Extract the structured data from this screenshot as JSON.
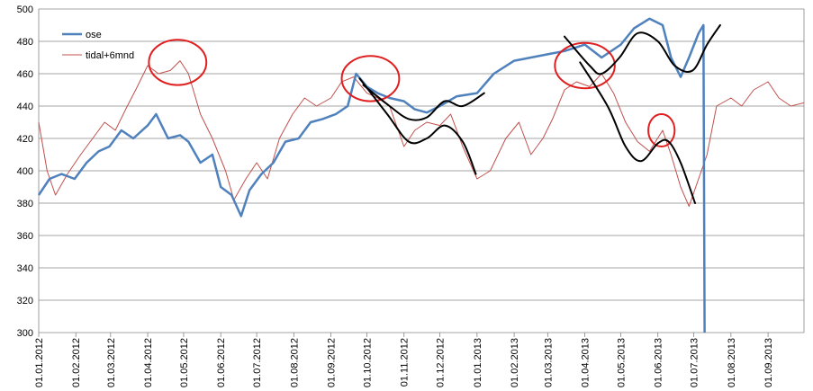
{
  "chart_data": {
    "type": "line",
    "title": "",
    "xlabel": "",
    "ylabel": "",
    "ylim": [
      300,
      500
    ],
    "xlim": [
      "2012-01-01",
      "2013-10-01"
    ],
    "yticks": [
      300,
      320,
      340,
      360,
      380,
      400,
      420,
      440,
      460,
      480,
      500
    ],
    "xticks": [
      "01.01.2012",
      "01.02.2012",
      "01.03.2012",
      "01.04.2012",
      "01.05.2012",
      "01.06.2012",
      "01.07.2012",
      "01.08.2012",
      "01.09.2012",
      "01.10.2012",
      "01.11.2012",
      "01.12.2012",
      "01.01.2013",
      "01.02.2013",
      "01.03.2013",
      "01.04.2013",
      "01.05.2013",
      "01.06.2013",
      "01.07.2013",
      "01.08.2013",
      "01.09.2013"
    ],
    "grid": "horizontal",
    "legend": "top-left",
    "series": [
      {
        "name": "ose",
        "color": "#4f81bd",
        "points": [
          [
            "2012-01-01",
            385
          ],
          [
            "2012-01-10",
            395
          ],
          [
            "2012-01-20",
            398
          ],
          [
            "2012-01-31",
            395
          ],
          [
            "2012-02-10",
            405
          ],
          [
            "2012-02-20",
            412
          ],
          [
            "2012-02-29",
            415
          ],
          [
            "2012-03-10",
            425
          ],
          [
            "2012-03-20",
            420
          ],
          [
            "2012-04-01",
            428
          ],
          [
            "2012-04-08",
            435
          ],
          [
            "2012-04-18",
            420
          ],
          [
            "2012-04-28",
            422
          ],
          [
            "2012-05-05",
            418
          ],
          [
            "2012-05-15",
            405
          ],
          [
            "2012-05-25",
            410
          ],
          [
            "2012-06-01",
            390
          ],
          [
            "2012-06-10",
            385
          ],
          [
            "2012-06-18",
            372
          ],
          [
            "2012-06-25",
            388
          ],
          [
            "2012-07-05",
            398
          ],
          [
            "2012-07-15",
            405
          ],
          [
            "2012-07-25",
            418
          ],
          [
            "2012-08-05",
            420
          ],
          [
            "2012-08-15",
            430
          ],
          [
            "2012-08-25",
            432
          ],
          [
            "2012-09-05",
            435
          ],
          [
            "2012-09-15",
            440
          ],
          [
            "2012-09-22",
            460
          ],
          [
            "2012-10-01",
            452
          ],
          [
            "2012-10-10",
            448
          ],
          [
            "2012-10-20",
            445
          ],
          [
            "2012-11-01",
            443
          ],
          [
            "2012-11-10",
            438
          ],
          [
            "2012-11-20",
            436
          ],
          [
            "2012-12-01",
            440
          ],
          [
            "2012-12-15",
            446
          ],
          [
            "2013-01-01",
            448
          ],
          [
            "2013-01-15",
            460
          ],
          [
            "2013-02-01",
            468
          ],
          [
            "2013-02-15",
            470
          ],
          [
            "2013-03-01",
            472
          ],
          [
            "2013-03-15",
            474
          ],
          [
            "2013-04-01",
            478
          ],
          [
            "2013-04-15",
            470
          ],
          [
            "2013-05-01",
            478
          ],
          [
            "2013-05-12",
            488
          ],
          [
            "2013-05-25",
            494
          ],
          [
            "2013-06-05",
            490
          ],
          [
            "2013-06-12",
            470
          ],
          [
            "2013-06-20",
            458
          ],
          [
            "2013-06-27",
            470
          ],
          [
            "2013-07-05",
            485
          ],
          [
            "2013-07-09",
            490
          ],
          [
            "2013-07-10",
            300
          ]
        ]
      },
      {
        "name": "tidal+6mnd",
        "color": "#c0504d",
        "points": [
          [
            "2012-01-01",
            430
          ],
          [
            "2012-01-08",
            400
          ],
          [
            "2012-01-15",
            385
          ],
          [
            "2012-01-25",
            398
          ],
          [
            "2012-02-05",
            410
          ],
          [
            "2012-02-15",
            420
          ],
          [
            "2012-02-25",
            430
          ],
          [
            "2012-03-05",
            425
          ],
          [
            "2012-03-15",
            440
          ],
          [
            "2012-03-22",
            450
          ],
          [
            "2012-04-01",
            465
          ],
          [
            "2012-04-10",
            460
          ],
          [
            "2012-04-20",
            462
          ],
          [
            "2012-04-28",
            468
          ],
          [
            "2012-05-05",
            460
          ],
          [
            "2012-05-15",
            435
          ],
          [
            "2012-05-25",
            420
          ],
          [
            "2012-06-05",
            400
          ],
          [
            "2012-06-12",
            382
          ],
          [
            "2012-06-22",
            395
          ],
          [
            "2012-07-01",
            405
          ],
          [
            "2012-07-10",
            395
          ],
          [
            "2012-07-20",
            420
          ],
          [
            "2012-07-31",
            435
          ],
          [
            "2012-08-10",
            445
          ],
          [
            "2012-08-20",
            440
          ],
          [
            "2012-09-01",
            445
          ],
          [
            "2012-09-10",
            455
          ],
          [
            "2012-09-20",
            458
          ],
          [
            "2012-10-01",
            448
          ],
          [
            "2012-10-10",
            445
          ],
          [
            "2012-10-20",
            440
          ],
          [
            "2012-11-01",
            415
          ],
          [
            "2012-11-10",
            425
          ],
          [
            "2012-11-20",
            430
          ],
          [
            "2012-12-01",
            428
          ],
          [
            "2012-12-10",
            435
          ],
          [
            "2012-12-20",
            415
          ],
          [
            "2013-01-01",
            395
          ],
          [
            "2013-01-12",
            400
          ],
          [
            "2013-01-25",
            420
          ],
          [
            "2013-02-05",
            430
          ],
          [
            "2013-02-15",
            410
          ],
          [
            "2013-02-25",
            420
          ],
          [
            "2013-03-05",
            432
          ],
          [
            "2013-03-15",
            450
          ],
          [
            "2013-03-25",
            455
          ],
          [
            "2013-04-05",
            452
          ],
          [
            "2013-04-15",
            460
          ],
          [
            "2013-04-25",
            448
          ],
          [
            "2013-05-05",
            430
          ],
          [
            "2013-05-15",
            418
          ],
          [
            "2013-05-25",
            412
          ],
          [
            "2013-06-05",
            425
          ],
          [
            "2013-06-12",
            410
          ],
          [
            "2013-06-20",
            390
          ],
          [
            "2013-06-27",
            378
          ],
          [
            "2013-07-05",
            395
          ],
          [
            "2013-07-12",
            410
          ],
          [
            "2013-07-20",
            440
          ],
          [
            "2013-08-01",
            445
          ],
          [
            "2013-08-10",
            440
          ],
          [
            "2013-08-20",
            450
          ],
          [
            "2013-09-01",
            455
          ],
          [
            "2013-09-10",
            445
          ],
          [
            "2013-09-20",
            440
          ],
          [
            "2013-10-01",
            442
          ]
        ]
      }
    ],
    "annotations": {
      "ellipses": [
        {
          "x": "2012-04-26",
          "y": 467,
          "rx_days": 24,
          "ry": 14
        },
        {
          "x": "2012-10-04",
          "y": 457,
          "rx_days": 24,
          "ry": 14
        },
        {
          "x": "2013-04-01",
          "y": 465,
          "rx_days": 25,
          "ry": 14
        },
        {
          "x": "2013-06-04",
          "y": 425,
          "rx_days": 11,
          "ry": 10
        }
      ],
      "curves": [
        {
          "points": [
            [
              "2012-09-25",
              457
            ],
            [
              "2012-10-18",
              435
            ],
            [
              "2012-11-05",
              418
            ],
            [
              "2012-11-20",
              420
            ],
            [
              "2012-12-05",
              428
            ],
            [
              "2012-12-20",
              418
            ],
            [
              "2012-12-31",
              398
            ]
          ]
        },
        {
          "points": [
            [
              "2012-09-28",
              453
            ],
            [
              "2012-10-20",
              440
            ],
            [
              "2012-11-05",
              432
            ],
            [
              "2012-11-20",
              433
            ],
            [
              "2012-12-05",
              443
            ],
            [
              "2012-12-20",
              440
            ],
            [
              "2013-01-07",
              448
            ]
          ]
        },
        {
          "points": [
            [
              "2013-03-15",
              483
            ],
            [
              "2013-04-05",
              465
            ],
            [
              "2013-04-15",
              460
            ],
            [
              "2013-04-30",
              470
            ],
            [
              "2013-05-15",
              485
            ],
            [
              "2013-06-01",
              480
            ],
            [
              "2013-06-15",
              465
            ],
            [
              "2013-06-30",
              462
            ],
            [
              "2013-07-12",
              478
            ],
            [
              "2013-07-23",
              490
            ]
          ]
        },
        {
          "points": [
            [
              "2013-03-28",
              467
            ],
            [
              "2013-04-20",
              440
            ],
            [
              "2013-05-05",
              415
            ],
            [
              "2013-05-18",
              406
            ],
            [
              "2013-06-01",
              417
            ],
            [
              "2013-06-10",
              418
            ],
            [
              "2013-06-20",
              405
            ],
            [
              "2013-07-02",
              380
            ]
          ]
        }
      ]
    }
  }
}
